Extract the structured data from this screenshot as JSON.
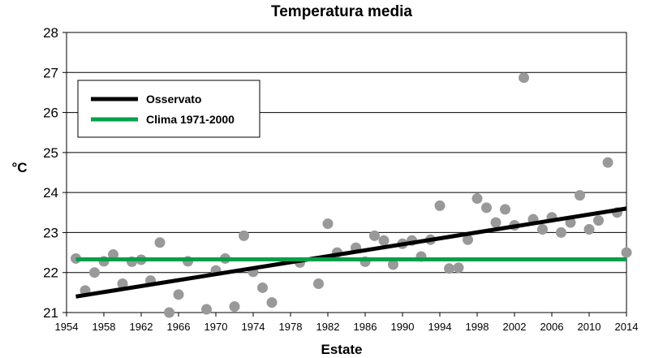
{
  "chart_data": {
    "type": "scatter",
    "title": "Temperatura media",
    "xlabel": "Estate",
    "ylabel": "°C",
    "xlim": [
      1954,
      2014
    ],
    "ylim": [
      21,
      28
    ],
    "xticks": [
      1954,
      1958,
      1962,
      1966,
      1970,
      1974,
      1978,
      1982,
      1986,
      1990,
      1994,
      1998,
      2002,
      2006,
      2010,
      2014
    ],
    "yticks": [
      21,
      22,
      23,
      24,
      25,
      26,
      27,
      28
    ],
    "grid": "horizontal",
    "legend_position": "top-left",
    "points": {
      "color": "#999999",
      "x": [
        1955,
        1956,
        1957,
        1958,
        1959,
        1960,
        1961,
        1962,
        1963,
        1964,
        1965,
        1966,
        1967,
        1969,
        1970,
        1971,
        1972,
        1973,
        1974,
        1975,
        1976,
        1979,
        1981,
        1982,
        1983,
        1985,
        1986,
        1987,
        1988,
        1989,
        1990,
        1991,
        1992,
        1993,
        1994,
        1995,
        1996,
        1997,
        1998,
        1999,
        2000,
        2001,
        2002,
        2003,
        2004,
        2005,
        2006,
        2007,
        2008,
        2009,
        2010,
        2011,
        2012,
        2013,
        2014
      ],
      "y": [
        22.35,
        21.55,
        22.0,
        22.28,
        22.45,
        21.72,
        22.27,
        22.32,
        21.8,
        22.75,
        21.0,
        21.45,
        22.28,
        21.08,
        22.05,
        22.35,
        21.15,
        22.92,
        22.02,
        21.62,
        21.25,
        22.25,
        21.72,
        23.22,
        22.5,
        22.62,
        22.27,
        22.92,
        22.8,
        22.2,
        22.72,
        22.8,
        22.4,
        22.82,
        23.67,
        22.1,
        22.12,
        22.82,
        23.85,
        23.62,
        23.25,
        23.58,
        23.18,
        26.87,
        23.33,
        23.08,
        23.38,
        23.0,
        23.25,
        23.93,
        23.08,
        23.3,
        24.75,
        23.5,
        22.5
      ]
    },
    "series": [
      {
        "name": "Osservato",
        "type": "line",
        "color": "#000000",
        "x": [
          1955,
          2014
        ],
        "y": [
          21.4,
          23.6
        ]
      },
      {
        "name": "Clima 1971-2000",
        "type": "line",
        "color": "#00a14b",
        "x": [
          1955,
          2014
        ],
        "y": [
          22.33,
          22.33
        ]
      }
    ]
  }
}
